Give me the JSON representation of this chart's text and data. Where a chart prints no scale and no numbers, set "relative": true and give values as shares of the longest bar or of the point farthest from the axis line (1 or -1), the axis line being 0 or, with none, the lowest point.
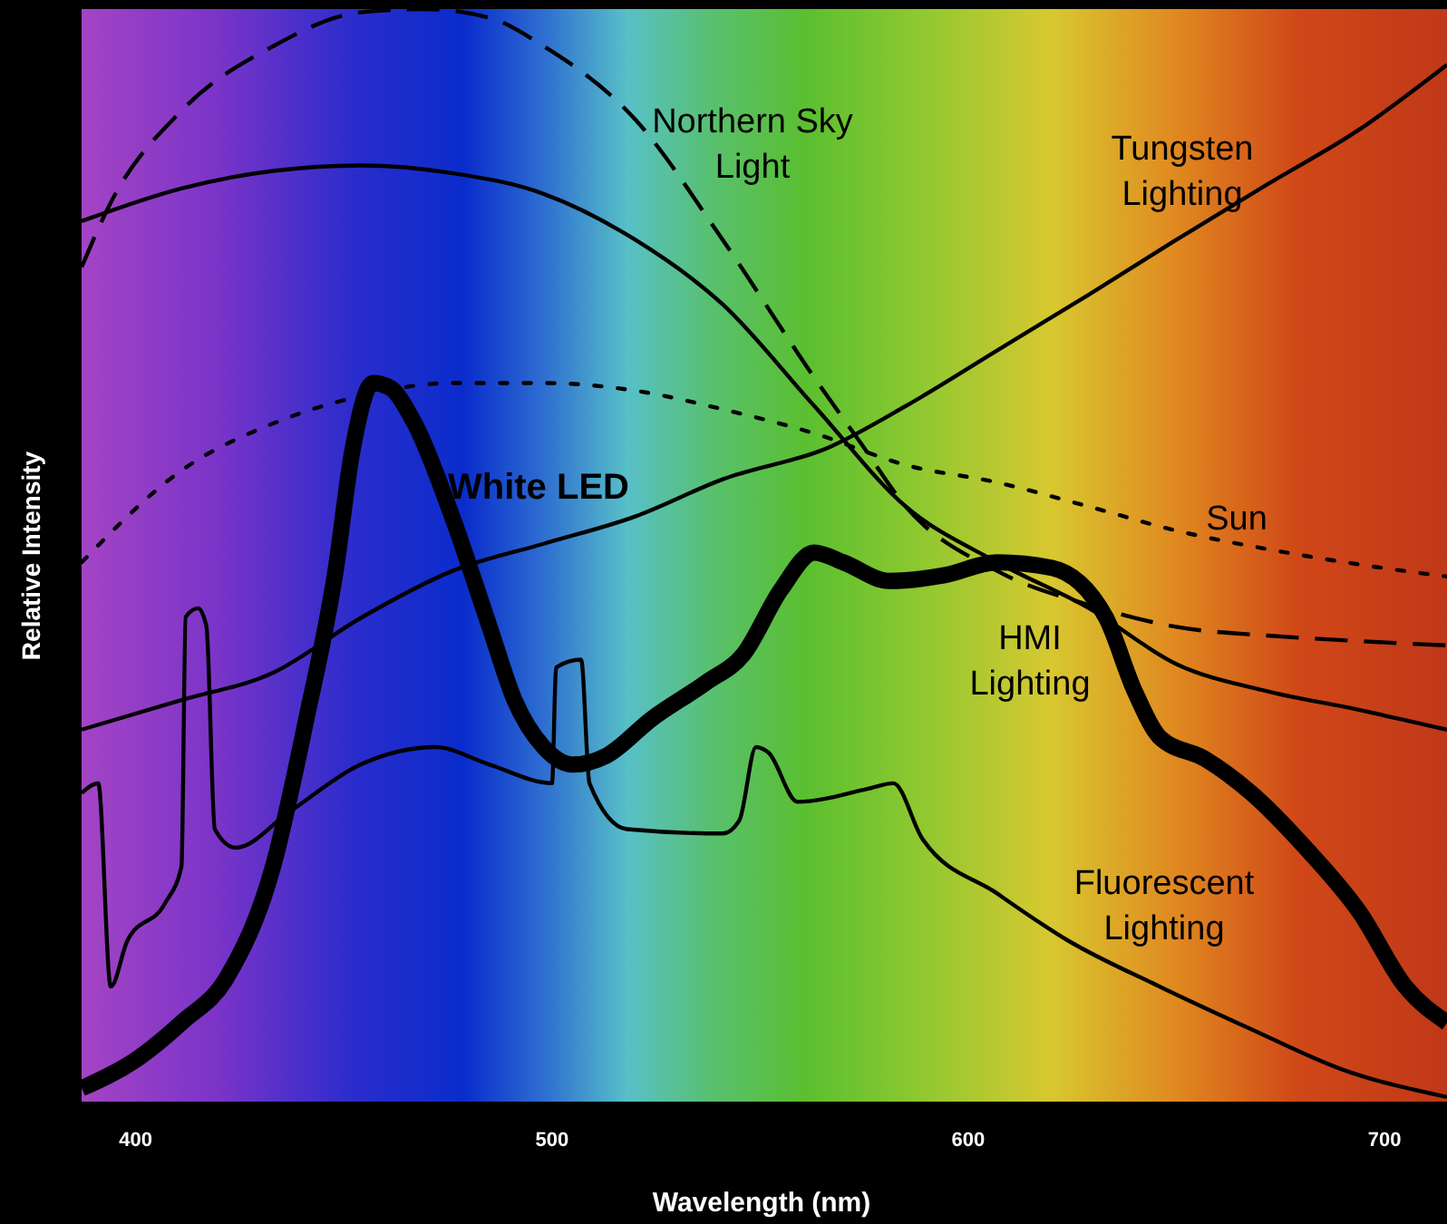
{
  "chart_data": {
    "type": "line",
    "relative": true,
    "xlabel": "Wavelength (nm)",
    "ylabel": "Relative Intensity",
    "xlim": [
      387,
      715
    ],
    "xticks": [
      400,
      500,
      600,
      700
    ],
    "grid": false,
    "series": [
      {
        "name": "Northern Sky Light",
        "color": "#000000",
        "line_style": "dashed",
        "x": [
          387,
          394,
          411,
          433,
          454,
          469,
          485,
          498,
          520,
          541,
          563,
          574,
          585,
          607,
          629,
          650,
          672,
          694,
          715
        ],
        "values": [
          0.764,
          0.823,
          0.907,
          0.966,
          0.997,
          1.0,
          0.992,
          0.966,
          0.899,
          0.789,
          0.663,
          0.604,
          0.545,
          0.486,
          0.455,
          0.435,
          0.427,
          0.422,
          0.418
        ]
      },
      {
        "name": "Tungsten Lighting",
        "color": "#000000",
        "line_style": "solid",
        "x": [
          387,
          411,
          433,
          454,
          476,
          498,
          520,
          541,
          567,
          585,
          607,
          629,
          650,
          672,
          694,
          715
        ],
        "values": [
          0.341,
          0.368,
          0.393,
          0.443,
          0.486,
          0.511,
          0.536,
          0.57,
          0.6,
          0.637,
          0.688,
          0.739,
          0.789,
          0.84,
          0.89,
          0.949
        ]
      },
      {
        "name": "White LED",
        "color": "#000000",
        "line_style": "solid",
        "x": [
          387,
          400,
          411,
          422,
          433,
          441,
          448,
          452,
          457,
          461,
          467,
          476,
          485,
          491,
          498,
          505,
          513,
          524,
          537,
          546,
          555,
          563,
          570,
          581,
          594,
          607,
          620,
          633,
          640,
          646,
          657,
          668,
          681,
          694,
          705,
          715
        ],
        "values": [
          0.013,
          0.039,
          0.073,
          0.115,
          0.216,
          0.351,
          0.486,
          0.595,
          0.658,
          0.654,
          0.621,
          0.536,
          0.435,
          0.368,
          0.325,
          0.309,
          0.317,
          0.351,
          0.384,
          0.41,
          0.469,
          0.503,
          0.494,
          0.477,
          0.482,
          0.494,
          0.489,
          0.444,
          0.376,
          0.334,
          0.314,
          0.283,
          0.233,
          0.174,
          0.106,
          0.073
        ]
      },
      {
        "name": "Sun",
        "color": "#000000",
        "line_style": "dotted",
        "x": [
          387,
          411,
          433,
          454,
          476,
          498,
          520,
          541,
          563,
          585,
          607,
          629,
          650,
          672,
          694,
          715
        ],
        "values": [
          0.494,
          0.578,
          0.621,
          0.646,
          0.658,
          0.658,
          0.651,
          0.634,
          0.612,
          0.583,
          0.567,
          0.545,
          0.523,
          0.506,
          0.492,
          0.481
        ]
      },
      {
        "name": "HMI Lighting",
        "color": "#000000",
        "line_style": "solid",
        "x": [
          387,
          411,
          433,
          454,
          476,
          498,
          520,
          541,
          563,
          585,
          607,
          629,
          650,
          672,
          694,
          715
        ],
        "values": [
          0.806,
          0.836,
          0.852,
          0.857,
          0.85,
          0.831,
          0.789,
          0.73,
          0.637,
          0.545,
          0.494,
          0.452,
          0.401,
          0.376,
          0.359,
          0.341
        ]
      },
      {
        "name": "Fluorescent Lighting",
        "color": "#000000",
        "line_style": "solid",
        "x": [
          387,
          391,
          394,
          398,
          407,
          411,
          412,
          415,
          417,
          419,
          424,
          437,
          454,
          472,
          485,
          500,
          501,
          507,
          509,
          518,
          541,
          545,
          549,
          552,
          559,
          576,
          582,
          589,
          607,
          624,
          646,
          668,
          690,
          715
        ],
        "values": [
          0.283,
          0.292,
          0.106,
          0.148,
          0.182,
          0.216,
          0.444,
          0.452,
          0.435,
          0.25,
          0.233,
          0.266,
          0.309,
          0.325,
          0.309,
          0.292,
          0.398,
          0.405,
          0.292,
          0.25,
          0.246,
          0.258,
          0.325,
          0.32,
          0.275,
          0.287,
          0.292,
          0.241,
          0.191,
          0.148,
          0.106,
          0.067,
          0.03,
          0.005
        ]
      }
    ]
  }
}
